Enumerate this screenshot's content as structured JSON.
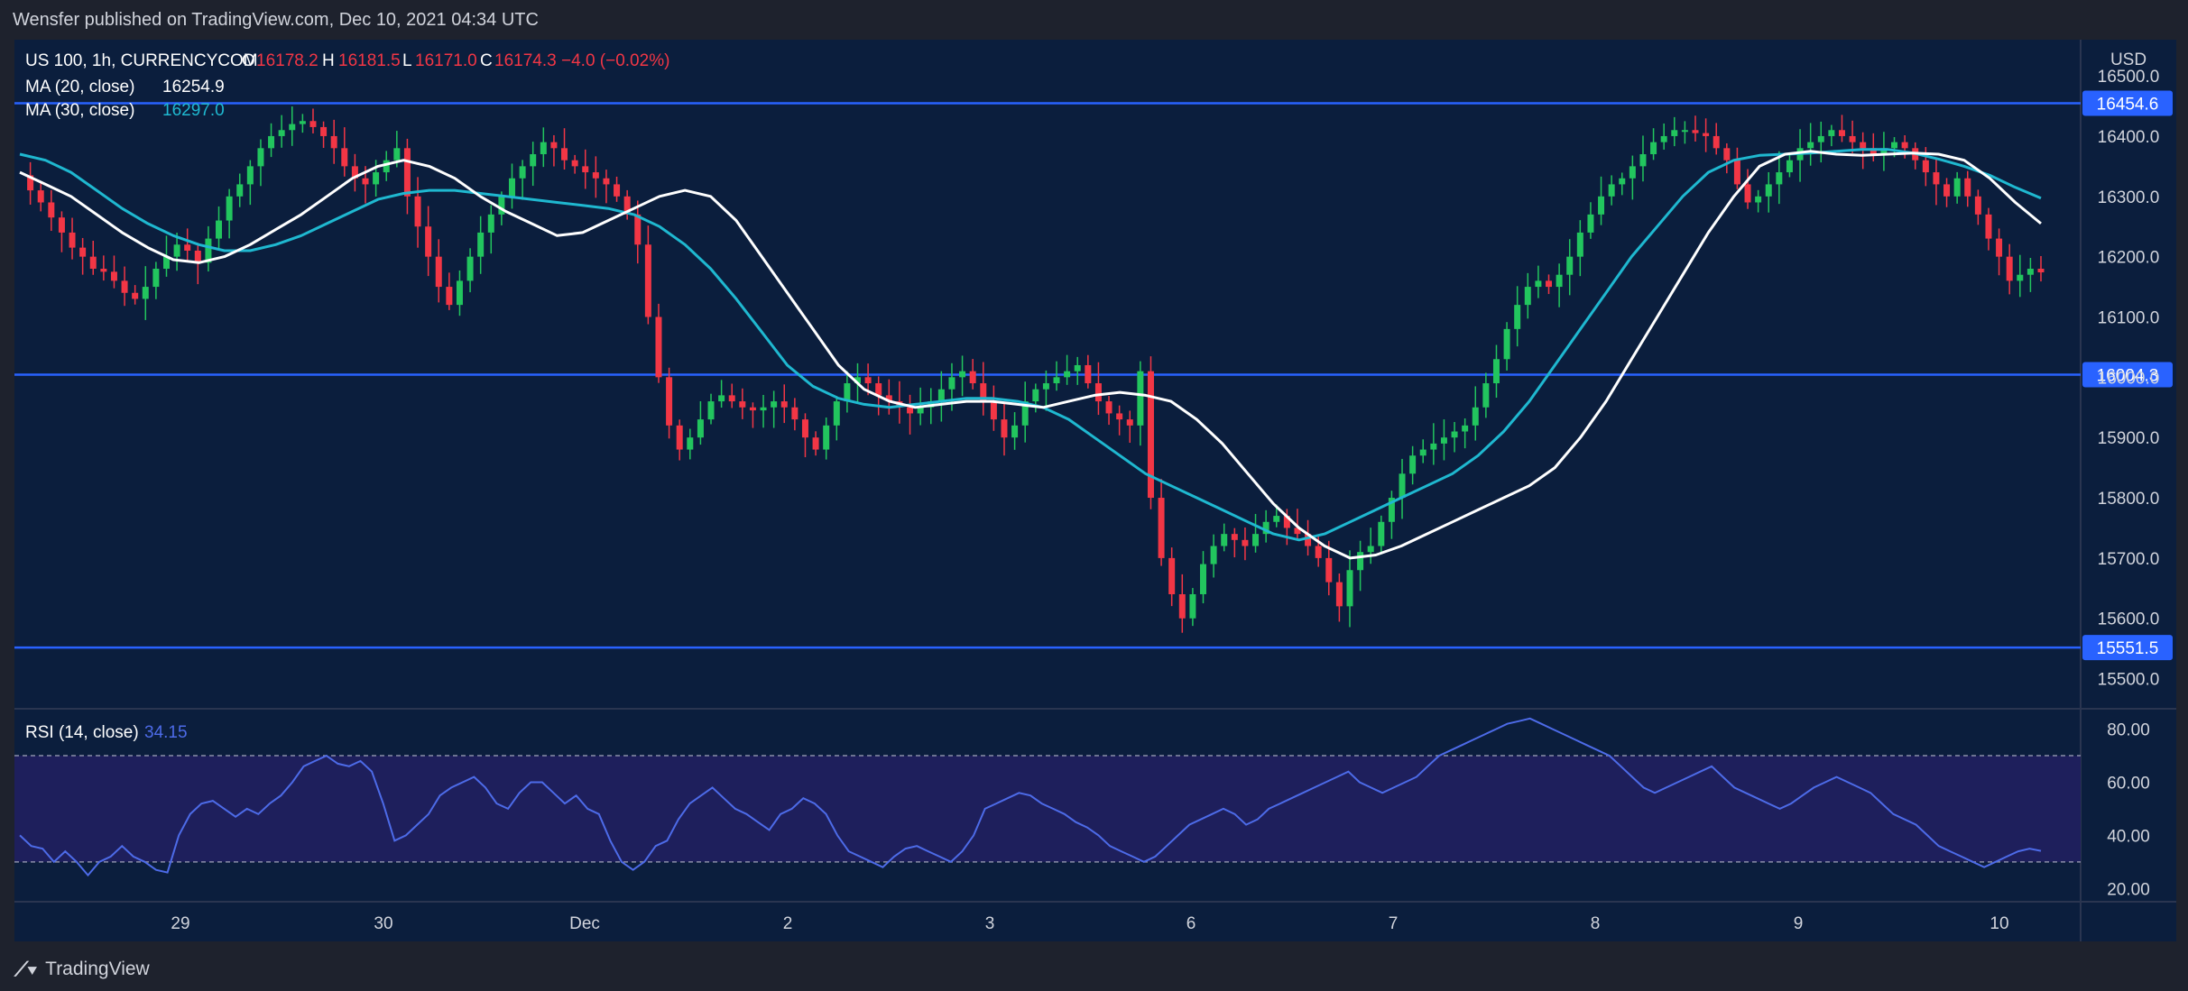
{
  "header": {
    "published": "Wensfer published on TradingView.com, Dec 10, 2021 04:34 UTC"
  },
  "footer": {
    "brand": "TradingView"
  },
  "legend": {
    "symbol": "US 100, 1h, CURRENCYCOM",
    "o_label": "O",
    "o_value": "16178.2",
    "h_label": "H",
    "h_value": "16181.5",
    "l_label": "L",
    "l_value": "16171.0",
    "c_label": "C",
    "c_value": "16174.3",
    "change": "−4.0 (−0.02%)",
    "ma20_label": "MA (20, close)",
    "ma20_value": "16254.9",
    "ma30_label": "MA (30, close)",
    "ma30_value": "16297.0",
    "rsi_label": "RSI (14, close)",
    "rsi_value": "34.15"
  },
  "colors": {
    "background": "#0b1e3d",
    "up": "#26a69a",
    "up_bright": "#22c55e",
    "down": "#f23645",
    "ma20": "#ffffff",
    "ma30": "#1fb8d0",
    "hline": "#2962ff",
    "rsi_line": "#4d6be8",
    "rsi_band": "#1e1f5c",
    "change_red": "#f23645"
  },
  "chart_data": [
    {
      "type": "candlestick",
      "title": "US 100, 1h, CURRENCYCOM",
      "currency": "USD",
      "y_ticks": [
        "15500.0",
        "15600.0",
        "15700.0",
        "15800.0",
        "15900.0",
        "16000.0",
        "16100.0",
        "16200.0",
        "16300.0",
        "16400.0",
        "16500.0"
      ],
      "ylim": [
        15450,
        16560
      ],
      "x_ticks": [
        "29",
        "30",
        "Dec",
        "2",
        "3",
        "6",
        "7",
        "8",
        "9",
        "10"
      ],
      "horizontal_levels": [
        {
          "label": "16454.6",
          "value": 16454.6
        },
        {
          "label": "16004.3",
          "value": 16004.3
        },
        {
          "label": "15551.5",
          "value": 15551.5
        }
      ],
      "ohlc_close_path": [
        16335,
        16310,
        16290,
        16265,
        16240,
        16215,
        16200,
        16180,
        16175,
        16160,
        16140,
        16130,
        16150,
        16180,
        16200,
        16220,
        16210,
        16190,
        16230,
        16260,
        16300,
        16320,
        16350,
        16380,
        16400,
        16410,
        16420,
        16425,
        16415,
        16400,
        16380,
        16350,
        16330,
        16320,
        16340,
        16360,
        16380,
        16300,
        16250,
        16200,
        16150,
        16120,
        16160,
        16200,
        16240,
        16270,
        16300,
        16330,
        16350,
        16370,
        16390,
        16380,
        16360,
        16350,
        16340,
        16330,
        16320,
        16300,
        16270,
        16220,
        16100,
        16000,
        15920,
        15880,
        15900,
        15930,
        15960,
        15970,
        15960,
        15950,
        15945,
        15950,
        15960,
        15950,
        15930,
        15900,
        15880,
        15920,
        15960,
        15990,
        16000,
        15990,
        15970,
        15960,
        15950,
        15940,
        15950,
        15960,
        15980,
        16000,
        16010,
        15990,
        15960,
        15930,
        15900,
        15920,
        15960,
        15980,
        15990,
        16000,
        16010,
        16020,
        15990,
        15960,
        15940,
        15930,
        15920,
        16010,
        15800,
        15700,
        15640,
        15600,
        15640,
        15690,
        15720,
        15740,
        15730,
        15720,
        15740,
        15760,
        15770,
        15750,
        15740,
        15720,
        15700,
        15660,
        15620,
        15680,
        15710,
        15720,
        15760,
        15800,
        15840,
        15870,
        15880,
        15890,
        15900,
        15910,
        15920,
        15950,
        15990,
        16030,
        16080,
        16120,
        16150,
        16160,
        16150,
        16170,
        16200,
        16240,
        16270,
        16300,
        16320,
        16330,
        16350,
        16370,
        16390,
        16400,
        16410,
        16410,
        16405,
        16400,
        16380,
        16360,
        16320,
        16290,
        16300,
        16320,
        16340,
        16360,
        16380,
        16390,
        16400,
        16410,
        16400,
        16390,
        16380,
        16370,
        16380,
        16390,
        16380,
        16360,
        16340,
        16320,
        16300,
        16330,
        16300,
        16270,
        16230,
        16200,
        16160,
        16170,
        16180,
        16174
      ],
      "ma20": [
        16340,
        16320,
        16300,
        16270,
        16240,
        16215,
        16195,
        16190,
        16200,
        16220,
        16245,
        16270,
        16300,
        16330,
        16350,
        16360,
        16350,
        16330,
        16300,
        16275,
        16255,
        16235,
        16240,
        16260,
        16280,
        16300,
        16310,
        16300,
        16260,
        16200,
        16140,
        16080,
        16020,
        15980,
        15960,
        15950,
        15955,
        15960,
        15960,
        15955,
        15950,
        15960,
        15970,
        15975,
        15970,
        15960,
        15930,
        15890,
        15840,
        15790,
        15750,
        15720,
        15700,
        15705,
        15720,
        15740,
        15760,
        15780,
        15800,
        15820,
        15850,
        15900,
        15960,
        16030,
        16100,
        16170,
        16240,
        16300,
        16350,
        16370,
        16375,
        16370,
        16368,
        16370,
        16372,
        16370,
        16360,
        16330,
        16290,
        16255
      ],
      "ma30": [
        16370,
        16360,
        16340,
        16310,
        16280,
        16255,
        16235,
        16220,
        16210,
        16210,
        16220,
        16235,
        16255,
        16275,
        16295,
        16305,
        16310,
        16310,
        16305,
        16300,
        16295,
        16290,
        16285,
        16280,
        16270,
        16250,
        16220,
        16180,
        16130,
        16075,
        16020,
        15985,
        15965,
        15955,
        15950,
        15955,
        15960,
        15965,
        15965,
        15960,
        15950,
        15930,
        15900,
        15870,
        15840,
        15820,
        15800,
        15780,
        15760,
        15740,
        15730,
        15740,
        15760,
        15780,
        15800,
        15820,
        15840,
        15870,
        15910,
        15960,
        16020,
        16080,
        16140,
        16200,
        16250,
        16300,
        16340,
        16360,
        16368,
        16370,
        16372,
        16375,
        16378,
        16378,
        16372,
        16362,
        16350,
        16335,
        16315,
        16297
      ]
    },
    {
      "type": "line",
      "title": "RSI (14, close)",
      "y_ticks": [
        "20.00",
        "40.00",
        "60.00",
        "80.00"
      ],
      "ylim": [
        15,
        87
      ],
      "band": [
        30,
        70
      ],
      "values": [
        40,
        36,
        35,
        30,
        34,
        30,
        25,
        30,
        32,
        36,
        32,
        30,
        27,
        26,
        40,
        48,
        52,
        53,
        50,
        47,
        50,
        48,
        52,
        55,
        60,
        66,
        68,
        70,
        67,
        66,
        68,
        64,
        52,
        38,
        40,
        44,
        48,
        55,
        58,
        60,
        62,
        58,
        52,
        50,
        56,
        60,
        60,
        56,
        52,
        55,
        50,
        48,
        38,
        30,
        27,
        30,
        36,
        38,
        46,
        52,
        55,
        58,
        54,
        50,
        48,
        45,
        42,
        48,
        50,
        54,
        52,
        48,
        40,
        34,
        32,
        30,
        28,
        32,
        35,
        36,
        34,
        32,
        30,
        34,
        40,
        50,
        52,
        54,
        56,
        55,
        52,
        50,
        48,
        45,
        43,
        40,
        36,
        34,
        32,
        30,
        32,
        36,
        40,
        44,
        46,
        48,
        50,
        48,
        44,
        46,
        50,
        52,
        54,
        56,
        58,
        60,
        62,
        64,
        60,
        58,
        56,
        58,
        60,
        62,
        66,
        70,
        72,
        74,
        76,
        78,
        80,
        82,
        83,
        84,
        82,
        80,
        78,
        76,
        74,
        72,
        70,
        66,
        62,
        58,
        56,
        58,
        60,
        62,
        64,
        66,
        62,
        58,
        56,
        54,
        52,
        50,
        52,
        55,
        58,
        60,
        62,
        60,
        58,
        56,
        52,
        48,
        46,
        44,
        40,
        36,
        34,
        32,
        30,
        28,
        30,
        32,
        34,
        35,
        34.15
      ]
    }
  ]
}
